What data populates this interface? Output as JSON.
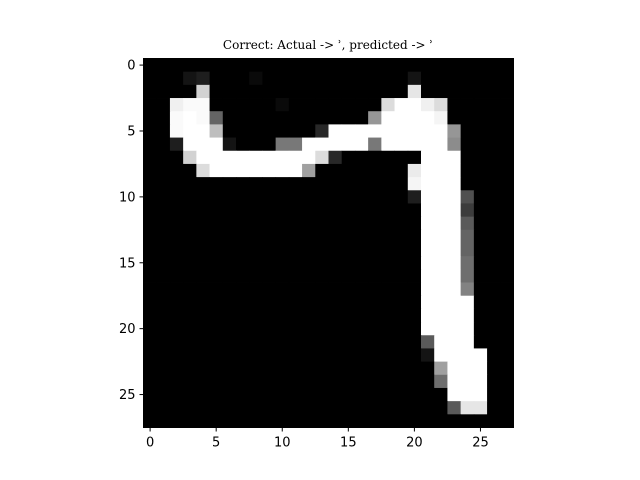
{
  "chart_data": {
    "type": "heatmap",
    "title": "Correct: Actual -> ʾ, predicted -> ʾ",
    "xlabel": "",
    "ylabel": "",
    "colormap": "gray",
    "value_range": [
      0,
      255
    ],
    "grid": false,
    "rows": 28,
    "cols": 28,
    "x_ticks": [
      0,
      5,
      10,
      15,
      20,
      25
    ],
    "y_ticks": [
      0,
      5,
      10,
      15,
      20,
      25
    ],
    "x_tick_labels": [
      "0",
      "5",
      "10",
      "15",
      "20",
      "25"
    ],
    "y_tick_labels": [
      "0",
      "5",
      "10",
      "15",
      "20",
      "25"
    ],
    "pixels": [
      [
        0,
        0,
        0,
        0,
        0,
        0,
        0,
        0,
        0,
        0,
        0,
        0,
        0,
        0,
        0,
        0,
        0,
        0,
        0,
        0,
        0,
        0,
        0,
        0,
        0,
        0,
        0,
        0
      ],
      [
        0,
        0,
        0,
        20,
        30,
        0,
        0,
        0,
        10,
        0,
        0,
        0,
        0,
        0,
        0,
        0,
        0,
        0,
        0,
        0,
        20,
        0,
        0,
        0,
        0,
        0,
        0,
        0
      ],
      [
        0,
        0,
        0,
        0,
        210,
        0,
        0,
        0,
        0,
        0,
        0,
        0,
        0,
        0,
        0,
        0,
        0,
        0,
        0,
        0,
        230,
        0,
        0,
        0,
        0,
        0,
        0,
        0
      ],
      [
        0,
        0,
        240,
        250,
        250,
        0,
        0,
        0,
        0,
        0,
        10,
        0,
        0,
        0,
        0,
        0,
        0,
        0,
        220,
        255,
        255,
        240,
        220,
        0,
        0,
        0,
        0,
        0
      ],
      [
        0,
        0,
        250,
        255,
        250,
        100,
        0,
        0,
        0,
        0,
        0,
        0,
        0,
        0,
        0,
        0,
        0,
        150,
        255,
        255,
        255,
        255,
        245,
        0,
        0,
        0,
        0,
        0
      ],
      [
        0,
        0,
        250,
        255,
        255,
        190,
        0,
        0,
        0,
        0,
        0,
        0,
        0,
        40,
        255,
        255,
        255,
        255,
        255,
        255,
        255,
        255,
        255,
        150,
        0,
        0,
        0,
        0
      ],
      [
        0,
        0,
        30,
        255,
        255,
        255,
        20,
        0,
        0,
        0,
        120,
        120,
        255,
        255,
        255,
        255,
        255,
        120,
        255,
        255,
        255,
        255,
        255,
        140,
        0,
        0,
        0,
        0
      ],
      [
        0,
        0,
        0,
        210,
        255,
        255,
        255,
        255,
        255,
        255,
        255,
        255,
        255,
        220,
        40,
        0,
        0,
        0,
        0,
        0,
        0,
        255,
        255,
        255,
        0,
        0,
        0,
        0
      ],
      [
        0,
        0,
        0,
        0,
        220,
        255,
        255,
        255,
        255,
        255,
        255,
        255,
        160,
        0,
        0,
        0,
        0,
        0,
        0,
        0,
        235,
        255,
        255,
        255,
        0,
        0,
        0,
        0
      ],
      [
        0,
        0,
        0,
        0,
        0,
        0,
        0,
        0,
        0,
        0,
        0,
        0,
        0,
        0,
        0,
        0,
        0,
        0,
        0,
        0,
        245,
        255,
        255,
        255,
        0,
        0,
        0,
        0
      ],
      [
        0,
        0,
        0,
        0,
        0,
        0,
        0,
        0,
        0,
        0,
        0,
        0,
        0,
        0,
        0,
        0,
        0,
        0,
        0,
        0,
        30,
        255,
        255,
        255,
        80,
        0,
        0,
        0
      ],
      [
        0,
        0,
        0,
        0,
        0,
        0,
        0,
        0,
        0,
        0,
        0,
        0,
        0,
        0,
        0,
        0,
        0,
        0,
        0,
        0,
        0,
        255,
        255,
        255,
        60,
        0,
        0,
        0
      ],
      [
        0,
        0,
        0,
        0,
        0,
        0,
        0,
        0,
        0,
        0,
        0,
        0,
        0,
        0,
        0,
        0,
        0,
        0,
        0,
        0,
        0,
        255,
        255,
        255,
        90,
        0,
        0,
        0
      ],
      [
        0,
        0,
        0,
        0,
        0,
        0,
        0,
        0,
        0,
        0,
        0,
        0,
        0,
        0,
        0,
        0,
        0,
        0,
        0,
        0,
        0,
        255,
        255,
        255,
        100,
        0,
        0,
        0
      ],
      [
        0,
        0,
        0,
        0,
        0,
        0,
        0,
        0,
        0,
        0,
        0,
        0,
        0,
        0,
        0,
        0,
        0,
        0,
        0,
        0,
        0,
        255,
        255,
        255,
        100,
        0,
        0,
        0
      ],
      [
        0,
        0,
        0,
        0,
        0,
        0,
        0,
        0,
        0,
        0,
        0,
        0,
        0,
        0,
        0,
        0,
        0,
        0,
        0,
        0,
        0,
        255,
        255,
        255,
        110,
        0,
        0,
        0
      ],
      [
        0,
        0,
        0,
        0,
        0,
        0,
        0,
        0,
        0,
        0,
        0,
        0,
        0,
        0,
        0,
        0,
        0,
        0,
        0,
        0,
        0,
        255,
        255,
        255,
        110,
        0,
        0,
        0
      ],
      [
        0,
        0,
        0,
        0,
        0,
        0,
        0,
        0,
        0,
        0,
        0,
        0,
        0,
        0,
        0,
        0,
        0,
        0,
        0,
        0,
        0,
        255,
        255,
        255,
        130,
        0,
        0,
        0
      ],
      [
        0,
        0,
        0,
        0,
        0,
        0,
        0,
        0,
        0,
        0,
        0,
        0,
        0,
        0,
        0,
        0,
        0,
        0,
        0,
        0,
        0,
        255,
        255,
        255,
        255,
        0,
        0,
        0
      ],
      [
        0,
        0,
        0,
        0,
        0,
        0,
        0,
        0,
        0,
        0,
        0,
        0,
        0,
        0,
        0,
        0,
        0,
        0,
        0,
        0,
        0,
        255,
        255,
        255,
        255,
        0,
        0,
        0
      ],
      [
        0,
        0,
        0,
        0,
        0,
        0,
        0,
        0,
        0,
        0,
        0,
        0,
        0,
        0,
        0,
        0,
        0,
        0,
        0,
        0,
        0,
        255,
        255,
        255,
        255,
        0,
        0,
        0
      ],
      [
        0,
        0,
        0,
        0,
        0,
        0,
        0,
        0,
        0,
        0,
        0,
        0,
        0,
        0,
        0,
        0,
        0,
        0,
        0,
        0,
        0,
        90,
        255,
        255,
        255,
        0,
        0,
        0
      ],
      [
        0,
        0,
        0,
        0,
        0,
        0,
        0,
        0,
        0,
        0,
        0,
        0,
        0,
        0,
        0,
        0,
        0,
        0,
        0,
        0,
        0,
        20,
        255,
        255,
        255,
        255,
        0,
        0
      ],
      [
        0,
        0,
        0,
        0,
        0,
        0,
        0,
        0,
        0,
        0,
        0,
        0,
        0,
        0,
        0,
        0,
        0,
        0,
        0,
        0,
        0,
        0,
        160,
        255,
        255,
        255,
        0,
        0
      ],
      [
        0,
        0,
        0,
        0,
        0,
        0,
        0,
        0,
        0,
        0,
        0,
        0,
        0,
        0,
        0,
        0,
        0,
        0,
        0,
        0,
        0,
        0,
        110,
        255,
        255,
        255,
        0,
        0
      ],
      [
        0,
        0,
        0,
        0,
        0,
        0,
        0,
        0,
        0,
        0,
        0,
        0,
        0,
        0,
        0,
        0,
        0,
        0,
        0,
        0,
        0,
        0,
        0,
        255,
        255,
        255,
        0,
        0
      ],
      [
        0,
        0,
        0,
        0,
        0,
        0,
        0,
        0,
        0,
        0,
        0,
        0,
        0,
        0,
        0,
        0,
        0,
        0,
        0,
        0,
        0,
        0,
        0,
        90,
        230,
        230,
        0,
        0
      ],
      [
        0,
        0,
        0,
        0,
        0,
        0,
        0,
        0,
        0,
        0,
        0,
        0,
        0,
        0,
        0,
        0,
        0,
        0,
        0,
        0,
        0,
        0,
        0,
        0,
        0,
        0,
        0,
        0
      ]
    ]
  }
}
